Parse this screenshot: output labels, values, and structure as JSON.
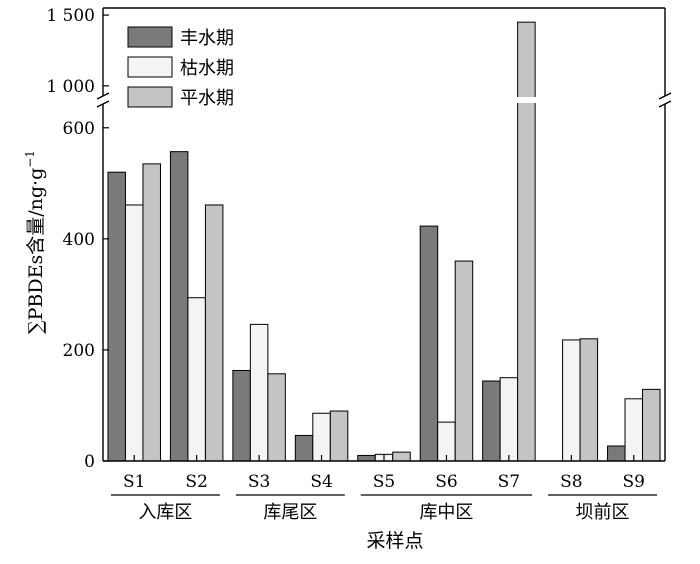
{
  "chart_data": {
    "type": "bar",
    "xlabel": "采样点",
    "ylabel": "∑PBDEs含量/ng·g",
    "ylabel_sup": "−1",
    "categories": [
      "S1",
      "S2",
      "S3",
      "S4",
      "S5",
      "S6",
      "S7",
      "S8",
      "S9"
    ],
    "groups": [
      {
        "label": "入库区",
        "categories": [
          "S1",
          "S2"
        ]
      },
      {
        "label": "库尾区",
        "categories": [
          "S3",
          "S4"
        ]
      },
      {
        "label": "库中区",
        "categories": [
          "S5",
          "S6",
          "S7"
        ]
      },
      {
        "label": "坝前区",
        "categories": [
          "S8",
          "S9"
        ]
      }
    ],
    "series": [
      {
        "name": "丰水期",
        "color": "#7a7a7a",
        "values": [
          520,
          557,
          163,
          46,
          10,
          423,
          144,
          0,
          27
        ]
      },
      {
        "name": "枯水期",
        "color": "#f4f4f4",
        "values": [
          461,
          294,
          246,
          86,
          12,
          70,
          150,
          218,
          112
        ]
      },
      {
        "name": "平水期",
        "color": "#c4c4c4",
        "values": [
          535,
          461,
          157,
          90,
          16,
          360,
          1450,
          220,
          129
        ]
      }
    ],
    "y_axis": {
      "broken": true,
      "lower_range": [
        0,
        650
      ],
      "upper_range": [
        900,
        1550
      ],
      "lower_ticks": [
        {
          "value": 0,
          "label": "0"
        },
        {
          "value": 200,
          "label": "200"
        },
        {
          "value": 400,
          "label": "400"
        },
        {
          "value": 600,
          "label": "600"
        }
      ],
      "upper_ticks": [
        {
          "value": 1000,
          "label": "1 000"
        },
        {
          "value": 1500,
          "label": "1 500"
        }
      ]
    },
    "legend_position": "top-left",
    "grid": false
  }
}
